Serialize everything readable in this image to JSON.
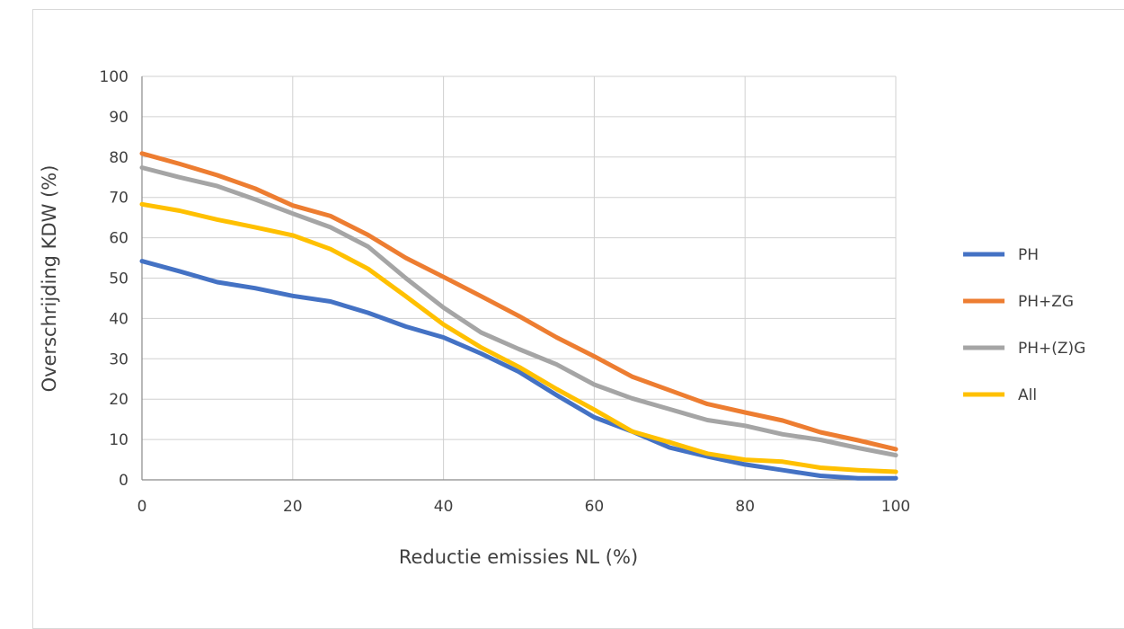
{
  "chart_data": {
    "type": "line",
    "title": "",
    "xlabel": "Reductie emissies NL (%)",
    "ylabel": "Overschrijding KDW (%)",
    "xlim": [
      0,
      100
    ],
    "ylim": [
      0,
      100
    ],
    "xticks": [
      "0",
      "20",
      "40",
      "60",
      "80",
      "100"
    ],
    "yticks": [
      "0",
      "10",
      "20",
      "30",
      "40",
      "50",
      "60",
      "70",
      "80",
      "90",
      "100"
    ],
    "grid": true,
    "legend_position": "right",
    "x": [
      0,
      5,
      10,
      15,
      20,
      25,
      30,
      35,
      40,
      45,
      50,
      55,
      60,
      65,
      70,
      75,
      80,
      85,
      90,
      95,
      100
    ],
    "series": [
      {
        "name": "PH",
        "color": "#4472C4",
        "values": [
          54.2,
          51.7,
          49.0,
          47.5,
          45.6,
          44.2,
          41.4,
          38.0,
          35.3,
          31.3,
          26.8,
          21.0,
          15.5,
          12.0,
          8.0,
          5.8,
          3.8,
          2.4,
          1.0,
          0.4,
          0.4
        ]
      },
      {
        "name": "PH+ZG",
        "color": "#ED7D31",
        "values": [
          80.9,
          78.3,
          75.5,
          72.2,
          68.0,
          65.4,
          60.7,
          55.0,
          50.3,
          45.5,
          40.6,
          35.3,
          30.6,
          25.6,
          22.2,
          18.8,
          16.7,
          14.7,
          11.8,
          9.8,
          7.6
        ]
      },
      {
        "name": "PH+(Z)G",
        "color": "#A5A5A5",
        "values": [
          77.4,
          75.0,
          72.8,
          69.5,
          66.0,
          62.6,
          57.8,
          50.0,
          42.7,
          36.5,
          32.4,
          28.6,
          23.6,
          20.2,
          17.5,
          14.8,
          13.4,
          11.3,
          9.9,
          7.9,
          6.1
        ]
      },
      {
        "name": "All",
        "color": "#FFC000",
        "values": [
          68.3,
          66.7,
          64.5,
          62.6,
          60.6,
          57.2,
          52.3,
          45.5,
          38.5,
          32.8,
          28.0,
          22.5,
          17.4,
          12.0,
          9.3,
          6.5,
          5.0,
          4.5,
          3.0,
          2.4,
          2.0
        ]
      }
    ]
  }
}
